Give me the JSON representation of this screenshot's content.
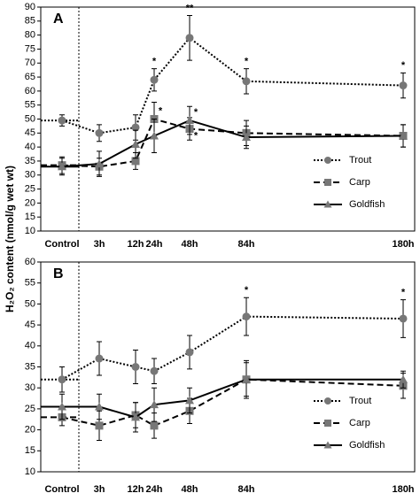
{
  "chart_data": [
    {
      "type": "line",
      "panel_label": "A",
      "categories": [
        "Control",
        "3h",
        "12h",
        "24h",
        "48h",
        "84h",
        "180h"
      ],
      "ylim": [
        10,
        90
      ],
      "yticks": [
        10,
        15,
        20,
        25,
        30,
        35,
        40,
        45,
        50,
        55,
        60,
        65,
        70,
        75,
        80,
        85,
        90
      ],
      "legend": "lower right",
      "y_label": "H₂O₂ content (nmol/g  wet wt)",
      "series": [
        {
          "name": "Trout",
          "color": "#777777",
          "line_style": "dotted",
          "marker": "circle",
          "values": [
            49.5,
            45,
            47,
            64,
            79,
            63.5,
            62
          ],
          "errors": [
            2,
            3,
            4.5,
            4,
            8,
            4.5,
            4.5
          ],
          "significance": [
            null,
            null,
            null,
            "*",
            "**",
            "*",
            "*"
          ]
        },
        {
          "name": "Carp",
          "color": "#777777",
          "line_style": "dashed",
          "marker": "square",
          "values": [
            33.5,
            33,
            35,
            50,
            46.5,
            45,
            44
          ],
          "errors": [
            3,
            3,
            3,
            6,
            4,
            4.5,
            4
          ],
          "significance": [
            null,
            null,
            null,
            "*",
            "*",
            null,
            null
          ]
        },
        {
          "name": "Goldfish",
          "color": "#777777",
          "line_style": "solid",
          "marker": "triangle",
          "values": [
            33,
            34,
            41,
            44,
            49.5,
            43.5,
            44
          ],
          "errors": [
            3,
            4.5,
            5,
            6,
            5,
            4,
            4
          ],
          "significance": [
            null,
            null,
            null,
            null,
            "*",
            null,
            null
          ]
        }
      ]
    },
    {
      "type": "line",
      "panel_label": "B",
      "categories": [
        "Control",
        "3h",
        "12h",
        "24h",
        "48h",
        "84h",
        "180h"
      ],
      "ylim": [
        10,
        60
      ],
      "yticks": [
        10,
        15,
        20,
        25,
        30,
        35,
        40,
        45,
        50,
        55,
        60
      ],
      "legend": "lower right",
      "series": [
        {
          "name": "Trout",
          "color": "#777777",
          "line_style": "dotted",
          "marker": "circle",
          "values": [
            32,
            37,
            35,
            34,
            38.5,
            47,
            46.5
          ],
          "errors": [
            3,
            4,
            4,
            3,
            4,
            4.5,
            4.5
          ],
          "significance": [
            null,
            null,
            null,
            null,
            null,
            "*",
            "*"
          ]
        },
        {
          "name": "Carp",
          "color": "#777777",
          "line_style": "dashed",
          "marker": "square",
          "values": [
            23,
            21,
            23.5,
            21,
            24.5,
            32,
            30.5
          ],
          "errors": [
            2,
            3.5,
            3,
            3,
            3,
            4,
            3
          ],
          "significance": [
            null,
            null,
            null,
            null,
            null,
            null,
            null
          ]
        },
        {
          "name": "Goldfish",
          "color": "#777777",
          "line_style": "solid",
          "marker": "triangle",
          "values": [
            25.5,
            25.5,
            23,
            26,
            27,
            32,
            32
          ],
          "errors": [
            3,
            3,
            3.5,
            4,
            3,
            4.5,
            2
          ],
          "significance": [
            null,
            null,
            null,
            null,
            null,
            null,
            null
          ]
        }
      ]
    }
  ]
}
